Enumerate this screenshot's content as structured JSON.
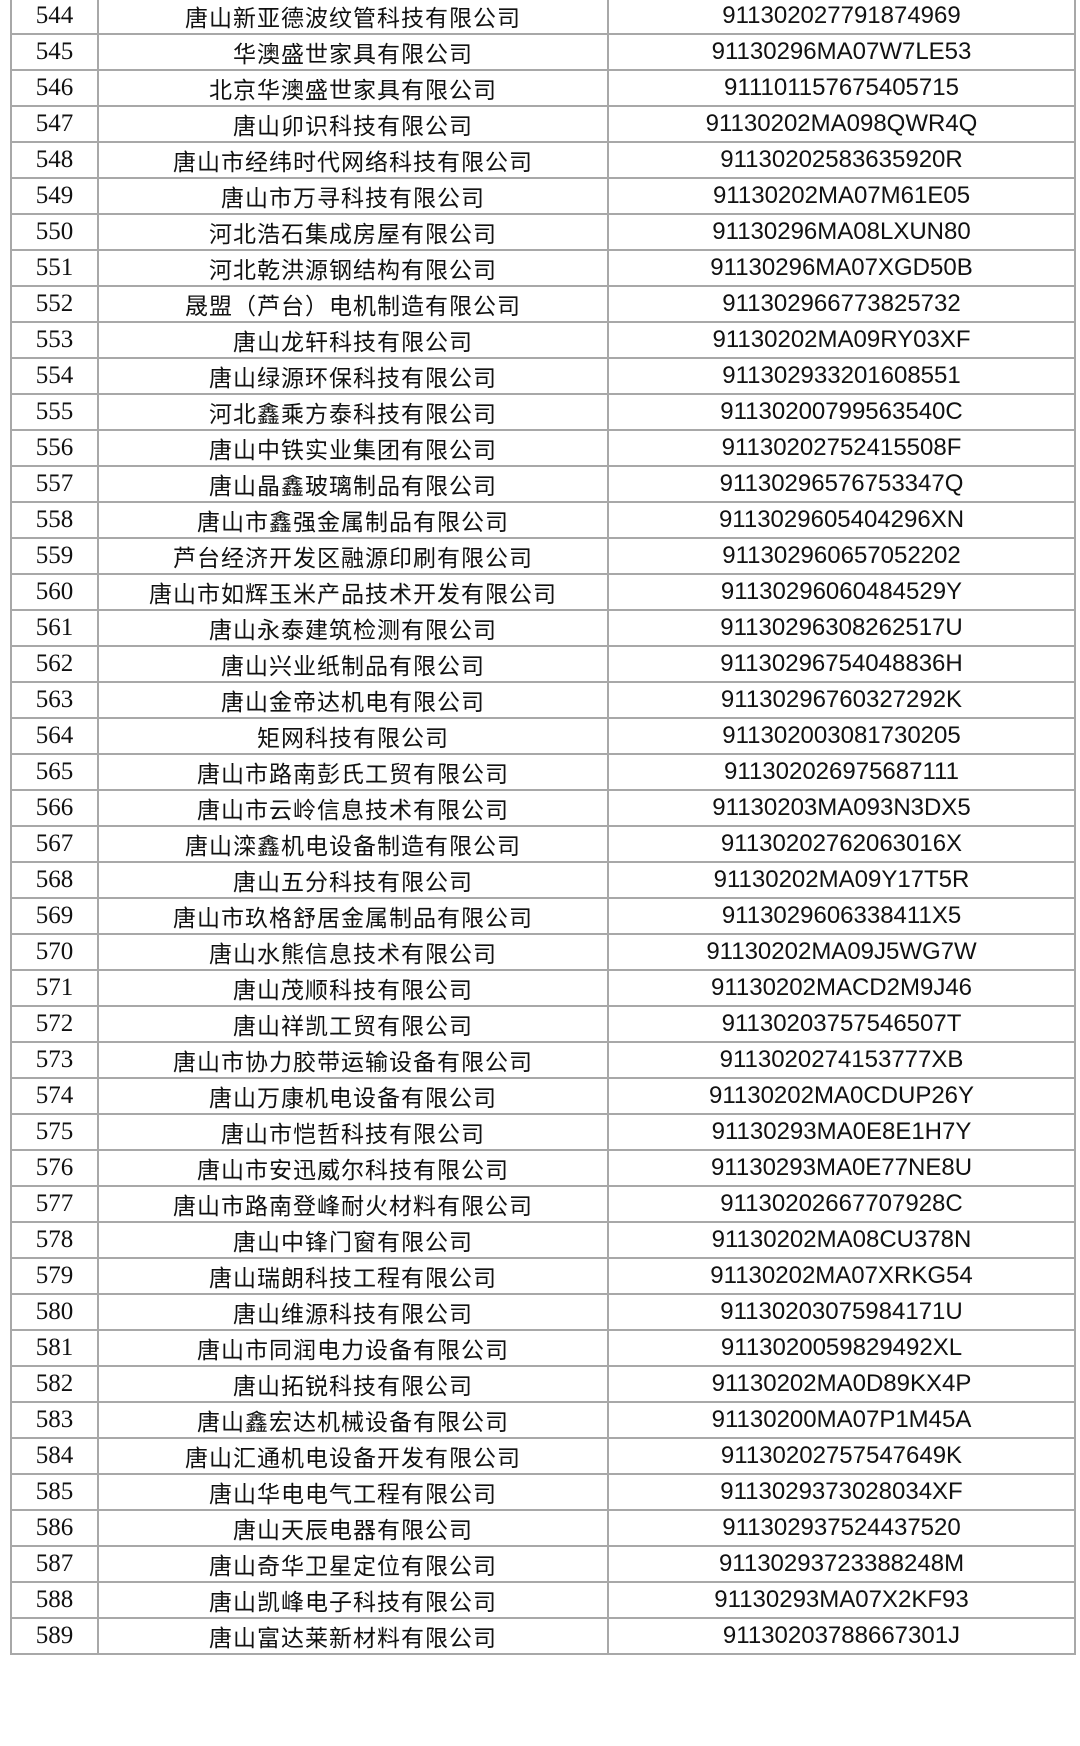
{
  "rows": [
    {
      "no": "544",
      "name": "唐山新亚德波纹管科技有限公司",
      "code": "91130202779187496​9"
    },
    {
      "no": "545",
      "name": "华澳盛世家具有限公司",
      "code": "91130296MA07W7LE53"
    },
    {
      "no": "546",
      "name": "北京华澳盛世家具有限公司",
      "code": "911101157675405715"
    },
    {
      "no": "547",
      "name": "唐山卯识科技有限公司",
      "code": "91130202MA098QWR4Q"
    },
    {
      "no": "548",
      "name": "唐山市经纬时代网络科技有限公司",
      "code": "91130202583635920R"
    },
    {
      "no": "549",
      "name": "唐山市万寻科技有限公司",
      "code": "91130202MA07M61E05"
    },
    {
      "no": "550",
      "name": "河北浩石集成房屋有限公司",
      "code": "91130296MA08LXUN80"
    },
    {
      "no": "551",
      "name": "河北乾洪源钢结构有限公司",
      "code": "91130296MA07XGD50B"
    },
    {
      "no": "552",
      "name": "晟盟（芦台）电机制造有限公司",
      "code": "911302966773825732"
    },
    {
      "no": "553",
      "name": "唐山龙轩科技有限公司",
      "code": "91130202MA09RY03XF"
    },
    {
      "no": "554",
      "name": "唐山绿源环保科技有限公司",
      "code": "911302933201608551"
    },
    {
      "no": "555",
      "name": "河北鑫乘方泰科技有限公司",
      "code": "91130200799563540C"
    },
    {
      "no": "556",
      "name": "唐山中铁实业集团有限公司",
      "code": "91130202752415508F"
    },
    {
      "no": "557",
      "name": "唐山晶鑫玻璃制品有限公司",
      "code": "91130296576753347Q"
    },
    {
      "no": "558",
      "name": "唐山市鑫强金属制品有限公司",
      "code": "911302960540429​6XN"
    },
    {
      "no": "559",
      "name": "芦台经济开发区融源印刷有限公司",
      "code": "911302960657052202"
    },
    {
      "no": "560",
      "name": "唐山市如辉玉米产品技术开发有限公司",
      "code": "91130296060484529Y"
    },
    {
      "no": "561",
      "name": "唐山永泰建筑检测有限公司",
      "code": "91130296308262517U"
    },
    {
      "no": "562",
      "name": "唐山兴业纸制品有限公司",
      "code": "91130296754048836H"
    },
    {
      "no": "563",
      "name": "唐山金帝达机电有限公司",
      "code": "91130296760327292K"
    },
    {
      "no": "564",
      "name": "矩网科技有限公司",
      "code": "911302003081730205"
    },
    {
      "no": "565",
      "name": "唐山市路南彭氏工贸有限公司",
      "code": "911302026975687111"
    },
    {
      "no": "566",
      "name": "唐山市云岭信息技术有限公司",
      "code": "91130203MA093N3DX5"
    },
    {
      "no": "567",
      "name": "唐山滦鑫机电设备制造有限公司",
      "code": "91130202762063016X"
    },
    {
      "no": "568",
      "name": "唐山五分科技有限公司",
      "code": "91130202MA09Y17T5R"
    },
    {
      "no": "569",
      "name": "唐山市玖格舒居金属制品有限公司",
      "code": "9113029606338411X5"
    },
    {
      "no": "570",
      "name": "唐山水熊信息技术有限公司",
      "code": "91130202MA09J5WG7W"
    },
    {
      "no": "571",
      "name": "唐山茂顺科技有限公司",
      "code": "91130202MACD2M9J46"
    },
    {
      "no": "572",
      "name": "唐山祥凯工贸有限公司",
      "code": "91130203757546507T"
    },
    {
      "no": "573",
      "name": "唐山市协力胶带运输设备有限公司",
      "code": "9113020274153777XB"
    },
    {
      "no": "574",
      "name": "唐山万康机电设备有限公司",
      "code": "91130202MA0CDUP26Y"
    },
    {
      "no": "575",
      "name": "唐山市恺哲科技有限公司",
      "code": "91130293MA0E8E1H7Y"
    },
    {
      "no": "576",
      "name": "唐山市安迅威尔科技有限公司",
      "code": "91130293MA0E77NE8U"
    },
    {
      "no": "577",
      "name": "唐山市路南登峰耐火材料有限公司",
      "code": "91130202667707928C"
    },
    {
      "no": "578",
      "name": "唐山中锋门窗有限公司",
      "code": "91130202MA08CU378N"
    },
    {
      "no": "579",
      "name": "唐山瑞朗科技工程有限公司",
      "code": "91130202MA07XRKG54"
    },
    {
      "no": "580",
      "name": "唐山维源科技有限公司",
      "code": "91130203075984171U"
    },
    {
      "no": "581",
      "name": "唐山市同润电力设备有限公司",
      "code": "9113020059829492XL"
    },
    {
      "no": "582",
      "name": "唐山拓锐科技有限公司",
      "code": "91130202MA0D89KX4P"
    },
    {
      "no": "583",
      "name": "唐山鑫宏达机械设备有限公司",
      "code": "91130200MA07P1M45A"
    },
    {
      "no": "584",
      "name": "唐山汇通机电设备开发有限公司",
      "code": "91130202757547649K"
    },
    {
      "no": "585",
      "name": "唐山华电电气工程有限公司",
      "code": "9113029373028034XF"
    },
    {
      "no": "586",
      "name": "唐山天辰电器有限公司",
      "code": "911302937524437520"
    },
    {
      "no": "587",
      "name": "唐山奇华卫星定位有限公司",
      "code": "91130293723388248M"
    },
    {
      "no": "588",
      "name": "唐山凯峰电子科技有限公司",
      "code": "91130293MA07X2KF93"
    },
    {
      "no": "589",
      "name": "唐山富达莱新材料有限公司",
      "code": "91130203788667301J"
    }
  ]
}
